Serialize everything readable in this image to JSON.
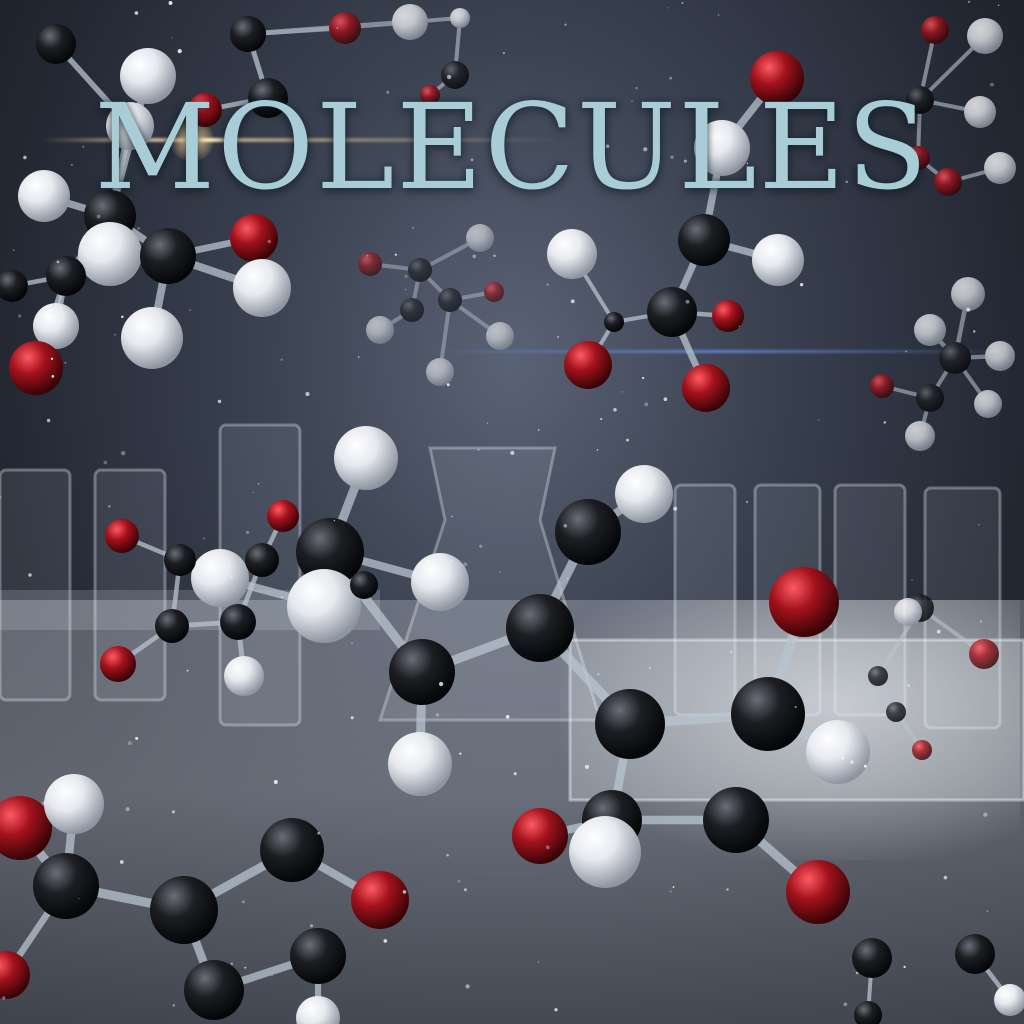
{
  "title": "MOLECULES",
  "colors": {
    "title": "#a9cdd6",
    "carbon": "#1c1e22",
    "oxygen": "#a3121c",
    "hydrogen": "#e6e9ee",
    "bond": "#b8c4cf",
    "glass": "#dfe6ee"
  }
}
